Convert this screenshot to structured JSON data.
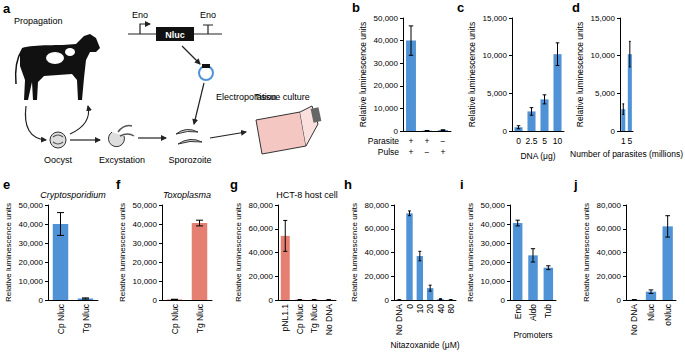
{
  "diagram": {
    "panel_label": "a",
    "labels": {
      "propagation": "Propagation",
      "promoter": "Eno",
      "terminator": "Eno",
      "reporter": "Nluc",
      "oocyst": "Oocyst",
      "excystation": "Excystation",
      "electroporation": "Electroporation",
      "sporozoite": "Sporozoite",
      "tissue_culture": "Tissue culture"
    }
  },
  "chart_data": [
    {
      "panel_label": "b",
      "type": "bar",
      "ylabel": "Relative luminescence units",
      "categories": [
        "+\n+",
        "+\n−",
        "−\n+"
      ],
      "category_row_labels": [
        "Parasite",
        "Pulse"
      ],
      "values": [
        40000,
        150,
        400
      ],
      "errors": [
        6500,
        50,
        150
      ],
      "color": "#4f93d6",
      "ylim": [
        0,
        50000
      ],
      "yticks": [
        0,
        {
          "value": 10000,
          "label": "10,000"
        },
        {
          "value": 20000,
          "label": "20,000"
        },
        {
          "value": 30000,
          "label": "30,000"
        },
        {
          "value": 40000,
          "label": "40,000"
        },
        {
          "value": 50000,
          "label": "50,000"
        }
      ]
    },
    {
      "panel_label": "c",
      "type": "bar",
      "ylabel": "Relative luminescence units",
      "xlabel": "DNA (μg)",
      "categories": [
        "0",
        "2.5",
        "5",
        "10"
      ],
      "values": [
        500,
        2600,
        4200,
        10200
      ],
      "errors": [
        200,
        500,
        600,
        1500
      ],
      "color": "#4f93d6",
      "ylim": [
        0,
        15000
      ],
      "yticks": [
        0,
        {
          "value": 5000,
          "label": "5,000"
        },
        {
          "value": 10000,
          "label": "10,000"
        },
        {
          "value": 15000,
          "label": "15,000"
        }
      ]
    },
    {
      "panel_label": "d",
      "type": "bar",
      "ylabel": "Relative luminescence units",
      "xlabel": "Number of parasites (millions)",
      "categories": [
        "1",
        "5"
      ],
      "values": [
        2900,
        10200
      ],
      "errors": [
        700,
        1700
      ],
      "color": "#4f93d6",
      "ylim": [
        0,
        15000
      ],
      "yticks": [
        0,
        {
          "value": 5000,
          "label": "5,000"
        },
        {
          "value": 10000,
          "label": "10,000"
        },
        {
          "value": 15000,
          "label": "15,000"
        }
      ]
    },
    {
      "panel_label": "e",
      "type": "bar",
      "title": "Cryptosporidium",
      "ylabel": "Relative luminescence units",
      "categories": [
        "Cp Nluc",
        "Tg Nluc"
      ],
      "values": [
        40000,
        800
      ],
      "errors": [
        6000,
        300
      ],
      "color": "#4f93d6",
      "ylim": [
        0,
        50000
      ],
      "yticks": [
        0,
        {
          "value": 10000,
          "label": "10,000"
        },
        {
          "value": 20000,
          "label": "20,000"
        },
        {
          "value": 30000,
          "label": "30,000"
        },
        {
          "value": 40000,
          "label": "40,000"
        },
        {
          "value": 50000,
          "label": "50,000"
        }
      ]
    },
    {
      "panel_label": "f",
      "type": "bar",
      "title": "Toxoplasma",
      "ylabel": "Relative luminescence units",
      "categories": [
        "Cp Nluc",
        "Tg Nluc"
      ],
      "values": [
        300,
        40500
      ],
      "errors": [
        100,
        1500
      ],
      "color": "#e57f72",
      "ylim": [
        0,
        50000
      ],
      "yticks": [
        0,
        {
          "value": 10000,
          "label": "10,000"
        },
        {
          "value": 20000,
          "label": "20,000"
        },
        {
          "value": 30000,
          "label": "30,000"
        },
        {
          "value": 40000,
          "label": "40,000"
        },
        {
          "value": 50000,
          "label": "50,000"
        }
      ]
    },
    {
      "panel_label": "g",
      "type": "bar",
      "title": "HCT-8 host cell",
      "ylabel": "Relative luminescence units",
      "categories": [
        "pNL1.1",
        "Cp Nluc",
        "Tg Nluc",
        "No DNA"
      ],
      "values": [
        54000,
        300,
        300,
        200
      ],
      "errors": [
        13000,
        100,
        100,
        50
      ],
      "color": "#e57f72",
      "ylim": [
        0,
        80000
      ],
      "yticks": [
        0,
        {
          "value": 20000,
          "label": "20,000"
        },
        {
          "value": 40000,
          "label": "40,000"
        },
        {
          "value": 60000,
          "label": "60,000"
        },
        {
          "value": 80000,
          "label": "80,000"
        }
      ]
    },
    {
      "panel_label": "h",
      "type": "bar",
      "ylabel": "Relative luminescence units",
      "xlabel": "Nitazoxanide (μM)",
      "categories": [
        "No DNA",
        "0",
        "10",
        "20",
        "40",
        "80"
      ],
      "values": [
        300,
        73000,
        37000,
        10000,
        800,
        300
      ],
      "errors": [
        100,
        2000,
        4000,
        2500,
        300,
        100
      ],
      "color": "#4f93d6",
      "ylim": [
        0,
        80000
      ],
      "yticks": [
        0,
        {
          "value": 20000,
          "label": "20,000"
        },
        {
          "value": 40000,
          "label": "40,000"
        },
        {
          "value": 60000,
          "label": "60,000"
        },
        {
          "value": 80000,
          "label": "80,000"
        }
      ]
    },
    {
      "panel_label": "i",
      "type": "bar",
      "ylabel": "Relative luminescence units",
      "xlabel": "Promoters",
      "categories": [
        "Eno",
        "Aldo",
        "Tub"
      ],
      "values": [
        40500,
        23500,
        17000
      ],
      "errors": [
        1500,
        3500,
        1000
      ],
      "color": "#4f93d6",
      "ylim": [
        0,
        50000
      ],
      "yticks": [
        0,
        {
          "value": 10000,
          "label": "10,000"
        },
        {
          "value": 20000,
          "label": "20,000"
        },
        {
          "value": 30000,
          "label": "30,000"
        },
        {
          "value": 40000,
          "label": "40,000"
        },
        {
          "value": 50000,
          "label": "50,000"
        }
      ]
    },
    {
      "panel_label": "j",
      "type": "bar",
      "ylabel": "Relative luminescence units",
      "categories": [
        "No DNA",
        "Nluc",
        "oNluc"
      ],
      "values": [
        200,
        7000,
        62000
      ],
      "errors": [
        50,
        1500,
        9000
      ],
      "color": "#4f93d6",
      "ylim": [
        0,
        80000
      ],
      "yticks": [
        0,
        {
          "value": 20000,
          "label": "20,000"
        },
        {
          "value": 40000,
          "label": "40,000"
        },
        {
          "value": 60000,
          "label": "60,000"
        },
        {
          "value": 80000,
          "label": "80,000"
        }
      ]
    }
  ]
}
